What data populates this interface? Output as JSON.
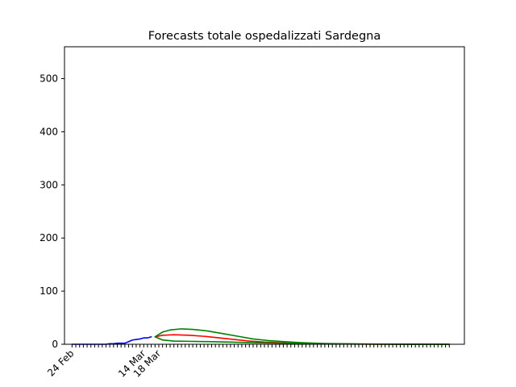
{
  "chart_data": {
    "type": "line",
    "title": "Forecasts totale ospedalizzati Sardegna",
    "xlabel": "",
    "ylabel": "",
    "x_start": "2020-02-22",
    "x_end": "2020-06-07",
    "ylim": [
      0,
      560
    ],
    "yticks": [
      0,
      100,
      200,
      300,
      400,
      500
    ],
    "xtick_labels": [
      {
        "date": "2020-02-24",
        "label": "24 Feb"
      },
      {
        "date": "2020-03-14",
        "label": "14 Mar"
      },
      {
        "date": "2020-03-18",
        "label": "18 Mar"
      }
    ],
    "grid": false,
    "legend": "none",
    "series": [
      {
        "color": "#0000ff",
        "points": [
          [
            "2020-02-24",
            0
          ],
          [
            "2020-02-25",
            0
          ],
          [
            "2020-02-26",
            0
          ],
          [
            "2020-02-27",
            0
          ],
          [
            "2020-02-28",
            0
          ],
          [
            "2020-02-29",
            0
          ],
          [
            "2020-03-01",
            0
          ],
          [
            "2020-03-02",
            0
          ],
          [
            "2020-03-03",
            0
          ],
          [
            "2020-03-04",
            0
          ],
          [
            "2020-03-05",
            1
          ],
          [
            "2020-03-06",
            1
          ],
          [
            "2020-03-07",
            2
          ],
          [
            "2020-03-08",
            2
          ],
          [
            "2020-03-09",
            2
          ],
          [
            "2020-03-10",
            5
          ],
          [
            "2020-03-11",
            8
          ],
          [
            "2020-03-12",
            9
          ],
          [
            "2020-03-13",
            10
          ],
          [
            "2020-03-14",
            12
          ],
          [
            "2020-03-15",
            12
          ],
          [
            "2020-03-16",
            14
          ]
        ]
      },
      {
        "color": "#ff0000",
        "points": [
          [
            "2020-03-17",
            14
          ],
          [
            "2020-03-19",
            17
          ],
          [
            "2020-03-22",
            18
          ],
          [
            "2020-03-26",
            17
          ],
          [
            "2020-03-30",
            15
          ],
          [
            "2020-04-03",
            12
          ],
          [
            "2020-04-07",
            9
          ],
          [
            "2020-04-11",
            6
          ],
          [
            "2020-04-15",
            4
          ],
          [
            "2020-04-20",
            2.5
          ],
          [
            "2020-04-25",
            1.5
          ],
          [
            "2020-05-01",
            0.8
          ],
          [
            "2020-05-10",
            0.3
          ],
          [
            "2020-05-20",
            0.1
          ],
          [
            "2020-06-03",
            0
          ]
        ]
      },
      {
        "color": "#008000",
        "points": [
          [
            "2020-03-17",
            14
          ],
          [
            "2020-03-19",
            23
          ],
          [
            "2020-03-21",
            27
          ],
          [
            "2020-03-24",
            29
          ],
          [
            "2020-03-27",
            28
          ],
          [
            "2020-03-31",
            25
          ],
          [
            "2020-04-04",
            20
          ],
          [
            "2020-04-08",
            15
          ],
          [
            "2020-04-12",
            10
          ],
          [
            "2020-04-16",
            7
          ],
          [
            "2020-04-20",
            5
          ],
          [
            "2020-04-25",
            3
          ],
          [
            "2020-05-01",
            1.5
          ],
          [
            "2020-05-10",
            0.5
          ],
          [
            "2020-05-20",
            0.2
          ],
          [
            "2020-06-03",
            0
          ]
        ]
      },
      {
        "color": "#008000",
        "points": [
          [
            "2020-03-17",
            14
          ],
          [
            "2020-03-19",
            8
          ],
          [
            "2020-03-22",
            6
          ],
          [
            "2020-03-26",
            5.5
          ],
          [
            "2020-03-31",
            5
          ],
          [
            "2020-04-06",
            4
          ],
          [
            "2020-04-12",
            3
          ],
          [
            "2020-04-20",
            2
          ],
          [
            "2020-05-01",
            1
          ],
          [
            "2020-05-15",
            0.3
          ],
          [
            "2020-06-03",
            0
          ]
        ]
      }
    ]
  }
}
